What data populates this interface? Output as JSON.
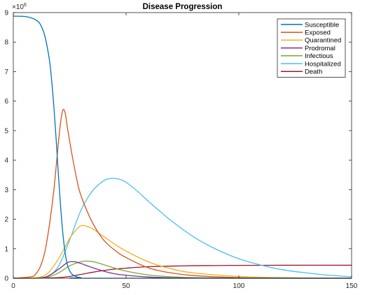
{
  "chart_data": {
    "type": "line",
    "title": "Disease Progression",
    "xlabel": "",
    "ylabel": "",
    "y_multiplier_base": "×10",
    "y_multiplier_exponent": "6",
    "xlim": [
      0,
      150
    ],
    "ylim": [
      0,
      9
    ],
    "x_ticks": [
      0,
      50,
      100,
      150
    ],
    "y_ticks": [
      0,
      1,
      2,
      3,
      4,
      5,
      6,
      7,
      8,
      9
    ],
    "grid": false,
    "legend_position": "top-right",
    "series": [
      {
        "name": "Susceptible",
        "color": "#0072BD",
        "x": [
          0,
          5,
          8,
          10,
          12,
          14,
          16,
          17,
          18,
          19,
          20,
          21,
          22,
          23,
          24,
          25,
          26,
          28,
          30,
          35,
          150
        ],
        "y": [
          8.88,
          8.87,
          8.82,
          8.75,
          8.6,
          8.2,
          7.4,
          6.7,
          5.8,
          4.7,
          3.5,
          2.4,
          1.5,
          0.85,
          0.45,
          0.25,
          0.14,
          0.05,
          0.02,
          0.0,
          0.0
        ]
      },
      {
        "name": "Exposed",
        "color": "#D95319",
        "x": [
          0,
          8,
          10,
          12,
          14,
          16,
          18,
          20,
          21,
          22,
          23,
          24,
          26,
          28,
          30,
          35,
          40,
          45,
          50,
          60,
          70,
          80,
          100,
          120,
          150
        ],
        "y": [
          0,
          0.05,
          0.15,
          0.4,
          0.9,
          1.8,
          3.0,
          4.6,
          5.3,
          5.7,
          5.6,
          5.1,
          4.2,
          3.4,
          2.8,
          1.9,
          1.3,
          0.95,
          0.7,
          0.35,
          0.18,
          0.09,
          0.02,
          0.005,
          0
        ]
      },
      {
        "name": "Quarantined",
        "color": "#EDB120",
        "x": [
          0,
          10,
          15,
          20,
          25,
          28,
          30,
          32,
          35,
          40,
          45,
          50,
          60,
          70,
          80,
          100,
          120,
          150
        ],
        "y": [
          0,
          0.02,
          0.15,
          0.65,
          1.35,
          1.65,
          1.78,
          1.77,
          1.68,
          1.42,
          1.15,
          0.92,
          0.55,
          0.32,
          0.18,
          0.06,
          0.02,
          0
        ]
      },
      {
        "name": "Prodromal",
        "color": "#7E2F8E",
        "x": [
          0,
          10,
          15,
          20,
          24,
          27,
          30,
          35,
          40,
          45,
          50,
          60,
          70,
          80,
          100,
          150
        ],
        "y": [
          0,
          0.01,
          0.06,
          0.3,
          0.53,
          0.56,
          0.5,
          0.36,
          0.24,
          0.15,
          0.1,
          0.04,
          0.015,
          0.005,
          0,
          0
        ]
      },
      {
        "name": "Infectious",
        "color": "#77AC30",
        "x": [
          0,
          10,
          15,
          20,
          25,
          30,
          33,
          36,
          40,
          45,
          50,
          60,
          70,
          80,
          100,
          150
        ],
        "y": [
          0,
          0.0,
          0.03,
          0.18,
          0.42,
          0.56,
          0.58,
          0.55,
          0.46,
          0.34,
          0.24,
          0.11,
          0.05,
          0.02,
          0.004,
          0
        ]
      },
      {
        "name": "Hospitalized",
        "color": "#4DBEEE",
        "x": [
          0,
          10,
          15,
          20,
          25,
          30,
          35,
          40,
          43,
          45,
          48,
          50,
          55,
          60,
          70,
          80,
          90,
          100,
          110,
          120,
          130,
          140,
          150
        ],
        "y": [
          0,
          0.0,
          0.05,
          0.4,
          1.3,
          2.3,
          2.95,
          3.3,
          3.38,
          3.38,
          3.33,
          3.25,
          2.95,
          2.6,
          1.95,
          1.4,
          0.98,
          0.66,
          0.44,
          0.28,
          0.18,
          0.1,
          0.05
        ]
      },
      {
        "name": "Death",
        "color": "#A2142F",
        "x": [
          0,
          10,
          20,
          25,
          30,
          35,
          40,
          45,
          50,
          55,
          60,
          70,
          80,
          90,
          100,
          120,
          150
        ],
        "y": [
          0,
          0.0,
          0.02,
          0.06,
          0.13,
          0.2,
          0.26,
          0.31,
          0.34,
          0.37,
          0.39,
          0.41,
          0.425,
          0.43,
          0.435,
          0.44,
          0.44
        ]
      }
    ]
  }
}
